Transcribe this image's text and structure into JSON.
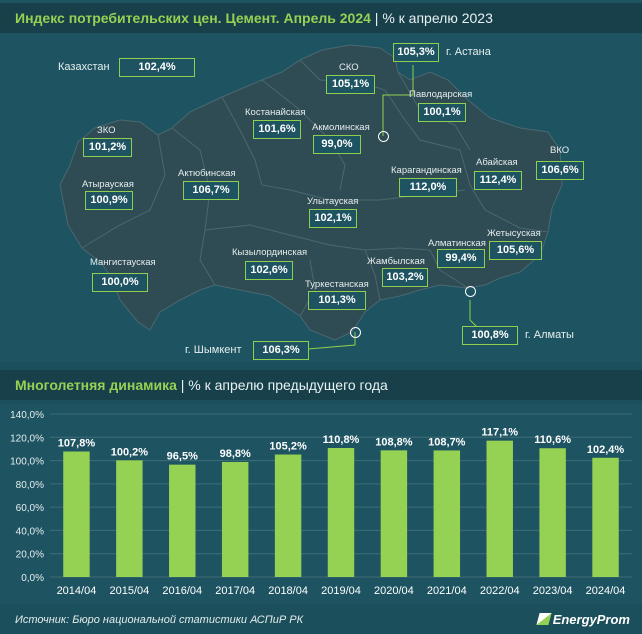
{
  "map_header": {
    "title": "Индекс потребительских цен. Цемент. Апрель 2024",
    "subtitle": "| % к апрелю 2023"
  },
  "kazakhstan": {
    "name": "Казахстан",
    "value": "102,4%"
  },
  "regions": [
    {
      "key": "ko",
      "name": "СКО",
      "value": "105,1%"
    },
    {
      "key": "pav",
      "name": "Павлодарская",
      "value": "100,1%"
    },
    {
      "key": "kos",
      "name": "Костанайская",
      "value": "101,6%"
    },
    {
      "key": "akm",
      "name": "Акмолинская",
      "value": "99,0%"
    },
    {
      "key": "zko",
      "name": "ЗКО",
      "value": "101,2%"
    },
    {
      "key": "vko",
      "name": "ВКО",
      "value": "106,6%"
    },
    {
      "key": "aba",
      "name": "Абайская",
      "value": "112,4%"
    },
    {
      "key": "akt",
      "name": "Актюбинская",
      "value": "106,7%"
    },
    {
      "key": "kar",
      "name": "Карагандинская",
      "value": "112,0%"
    },
    {
      "key": "aty",
      "name": "Атырауская",
      "value": "100,9%"
    },
    {
      "key": "uly",
      "name": "Улытауская",
      "value": "102,1%"
    },
    {
      "key": "zhe",
      "name": "Жетысуская",
      "value": "105,6%"
    },
    {
      "key": "alm",
      "name": "Алматинская",
      "value": "99,4%"
    },
    {
      "key": "kyz",
      "name": "Кызылординская",
      "value": "102,6%"
    },
    {
      "key": "man",
      "name": "Мангистауская",
      "value": "100,0%"
    },
    {
      "key": "zha",
      "name": "Жамбылская",
      "value": "103,2%"
    },
    {
      "key": "tur",
      "name": "Туркестанская",
      "value": "101,3%"
    }
  ],
  "cities": [
    {
      "key": "astana",
      "name": "г. Астана",
      "value": "105,3%"
    },
    {
      "key": "almaty",
      "name": "г. Алматы",
      "value": "100,8%"
    },
    {
      "key": "shymkent",
      "name": "г. Шымкент",
      "value": "106,3%"
    }
  ],
  "chart_header": {
    "title": "Многолетняя динамика",
    "subtitle": "| % к апрелю предыдущего года"
  },
  "chart_data": {
    "type": "bar",
    "categories": [
      "2014/04",
      "2015/04",
      "2016/04",
      "2017/04",
      "2018/04",
      "2019/04",
      "2020/04",
      "2021/04",
      "2022/04",
      "2023/04",
      "2024/04"
    ],
    "values": [
      107.8,
      100.2,
      96.5,
      98.8,
      105.2,
      110.8,
      108.8,
      108.7,
      117.1,
      110.6,
      102.4
    ],
    "labels": [
      "107,8%",
      "100,2%",
      "96,5%",
      "98,8%",
      "105,2%",
      "110,8%",
      "108,8%",
      "108,7%",
      "117,1%",
      "110,6%",
      "102,4%"
    ],
    "yticks": [
      "0,0%",
      "20,0%",
      "40,0%",
      "60,0%",
      "80,0%",
      "100,0%",
      "120,0%",
      "140,0%"
    ],
    "ylim": [
      0,
      140
    ],
    "grid": true,
    "bar_color": "#95d152"
  },
  "footer": {
    "source": "Источник: Бюро национальной статистики АСПиР РК",
    "brand": "EnergyProm"
  },
  "colors": {
    "background": "#1b4f5c",
    "accent": "#95d152",
    "map_fill": "#2f4b54",
    "header_bar": "#17404b"
  }
}
